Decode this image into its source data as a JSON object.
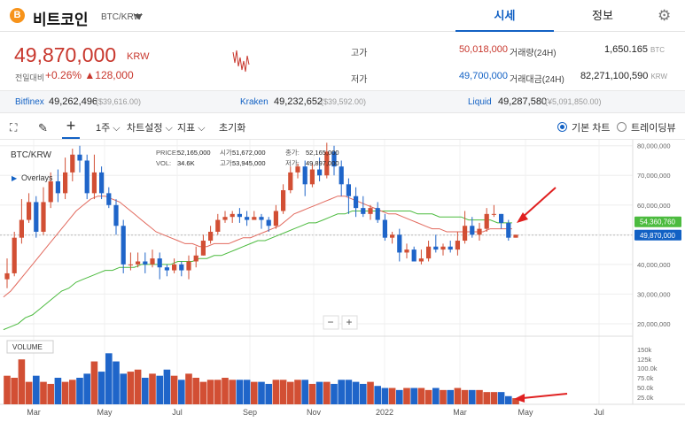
{
  "header": {
    "coin_icon": "bitcoin-icon",
    "coin_glyph": "B",
    "name": "비트코인",
    "pair": "BTC/KRW",
    "tabs": [
      "시세",
      "정보"
    ],
    "active_tab": "시세"
  },
  "price": {
    "value": "49,870,000",
    "unit": "KRW",
    "label": "전일대비",
    "change_pct": "+0.26%",
    "change_abs": "▲128,000"
  },
  "stats": {
    "high_label": "고가",
    "high": "50,018,000",
    "low_label": "저가",
    "low": "49,700,000",
    "vol_label": "거래량(24H)",
    "vol": "1,650.165",
    "vol_unit": "BTC",
    "amt_label": "거래대금(24H)",
    "amt": "82,271,100,590",
    "amt_unit": "KRW"
  },
  "exchanges": [
    {
      "name": "Bitfinex",
      "price": "49,262,496",
      "usd": "($39,616.00)"
    },
    {
      "name": "Kraken",
      "price": "49,232,652",
      "usd": "($39,592.00)"
    },
    {
      "name": "Liquid",
      "price": "49,287,580",
      "usd": "(¥5,091,850.00)"
    }
  ],
  "toolbar": {
    "period": "1주",
    "settings": "차트설정",
    "indicator": "지표",
    "reset": "초기화",
    "basic": "기본 차트",
    "tradingview": "트레이딩뷰"
  },
  "chart_data": {
    "type": "candlestick",
    "symbol": "BTC/KRW",
    "overlay_label": "Overlays",
    "info": {
      "price_label": "PRICE:",
      "price": "52,165,000",
      "vol_label": "VOL:",
      "vol": "34.6K",
      "open_label": "시가:",
      "open": "51,672,000",
      "high_label": "고가:",
      "high": "53,945,000",
      "close_label": "종가:",
      "close": "52,165,000",
      "low_label": "저가:",
      "low": "49,897,000"
    },
    "ylim": [
      17000000,
      82000000
    ],
    "y_ticks": [
      80000000,
      70000000,
      60000000,
      50000000,
      40000000,
      30000000,
      20000000
    ],
    "y_tick_labels": [
      "80,000,000",
      "70,000,000",
      "60,000,000",
      "50,000,000",
      "40,000,000",
      "30,000,000",
      "20,000,000"
    ],
    "x_labels": [
      "Mar",
      "May",
      "Jul",
      "Sep",
      "Nov",
      "2022",
      "Mar",
      "May",
      "Jul"
    ],
    "ma_long_label": "54,360,760",
    "last_price_label": "49,870,000",
    "candles": [
      [
        35,
        37,
        42,
        32
      ],
      [
        37,
        49,
        51,
        36
      ],
      [
        49,
        55,
        62,
        47
      ],
      [
        55,
        61,
        64,
        54
      ],
      [
        61,
        51,
        63,
        49
      ],
      [
        51,
        61,
        66,
        50
      ],
      [
        61,
        68,
        71,
        59
      ],
      [
        68,
        64,
        72,
        61
      ],
      [
        64,
        71,
        76,
        62
      ],
      [
        71,
        77,
        79,
        68
      ],
      [
        77,
        75,
        80,
        71
      ],
      [
        75,
        64,
        77,
        62
      ],
      [
        64,
        71,
        77,
        62
      ],
      [
        71,
        64,
        73,
        62
      ],
      [
        64,
        60,
        66,
        59
      ],
      [
        60,
        53,
        62,
        50
      ],
      [
        53,
        40,
        55,
        37
      ],
      [
        40,
        40,
        44,
        38
      ],
      [
        40,
        41,
        44,
        39
      ],
      [
        41,
        40,
        44,
        37
      ],
      [
        40,
        42,
        45,
        39
      ],
      [
        42,
        39,
        44,
        35
      ],
      [
        39,
        38,
        40,
        36
      ],
      [
        38,
        40,
        42,
        37
      ],
      [
        40,
        38,
        41,
        36
      ],
      [
        38,
        41,
        43,
        35
      ],
      [
        41,
        43,
        46,
        39
      ],
      [
        43,
        48,
        50,
        43
      ],
      [
        48,
        51,
        53,
        47
      ],
      [
        51,
        55,
        57,
        50
      ],
      [
        55,
        56,
        58,
        54
      ],
      [
        56,
        57,
        58,
        54
      ],
      [
        57,
        56,
        59,
        54
      ],
      [
        56,
        55,
        58,
        53
      ],
      [
        55,
        56,
        58,
        55
      ],
      [
        56,
        55,
        57,
        52
      ],
      [
        55,
        53,
        56,
        51
      ],
      [
        53,
        58,
        60,
        52
      ],
      [
        58,
        65,
        67,
        57
      ],
      [
        65,
        71,
        73,
        64
      ],
      [
        71,
        73,
        74,
        69
      ],
      [
        73,
        67,
        75,
        63
      ],
      [
        67,
        72,
        74,
        66
      ],
      [
        72,
        70,
        76,
        68
      ],
      [
        70,
        78,
        81,
        69
      ],
      [
        78,
        73,
        80,
        70
      ],
      [
        73,
        67,
        75,
        63
      ],
      [
        67,
        63,
        69,
        57
      ],
      [
        63,
        59,
        66,
        56
      ],
      [
        59,
        57,
        63,
        56
      ],
      [
        57,
        59,
        60,
        55
      ],
      [
        59,
        55,
        61,
        54
      ],
      [
        55,
        49,
        57,
        48
      ],
      [
        49,
        50,
        51,
        47
      ],
      [
        50,
        44,
        52,
        41
      ],
      [
        44,
        45,
        47,
        42
      ],
      [
        45,
        41,
        46,
        41
      ],
      [
        41,
        42,
        45,
        40
      ],
      [
        42,
        46,
        48,
        41
      ],
      [
        46,
        45,
        50,
        44
      ],
      [
        45,
        46,
        47,
        43
      ],
      [
        46,
        45,
        48,
        44
      ],
      [
        45,
        48,
        51,
        43
      ],
      [
        48,
        53,
        58,
        47
      ],
      [
        53,
        50,
        56,
        49
      ],
      [
        50,
        52,
        54,
        48
      ],
      [
        52,
        57,
        59,
        51
      ],
      [
        57,
        57,
        60,
        56
      ],
      [
        57,
        54,
        57,
        52
      ],
      [
        54,
        49,
        55,
        48
      ],
      [
        49,
        50,
        50,
        49
      ]
    ],
    "ma20": [
      29,
      31,
      34,
      37,
      40,
      43,
      46,
      49,
      52,
      55,
      58,
      60,
      62,
      63,
      63,
      62,
      61,
      59,
      57,
      55,
      53,
      51,
      50,
      49,
      48,
      47,
      47,
      46,
      46,
      47,
      47,
      47,
      48,
      49,
      49,
      50,
      51,
      52,
      53,
      55,
      57,
      58,
      59,
      60,
      61,
      62,
      63,
      63,
      62,
      61,
      60,
      59,
      58,
      57,
      57,
      56,
      55,
      54,
      53,
      52,
      52,
      51,
      51,
      51,
      51,
      51,
      51,
      52,
      52,
      52,
      52
    ],
    "ma50": [
      18,
      19,
      20,
      22,
      23,
      25,
      27,
      29,
      31,
      32,
      34,
      35,
      36,
      37,
      38,
      38,
      39,
      39,
      39,
      40,
      40,
      40,
      40,
      40,
      41,
      41,
      41,
      42,
      42,
      43,
      43,
      44,
      45,
      46,
      47,
      48,
      48,
      49,
      50,
      51,
      52,
      53,
      54,
      54,
      55,
      56,
      57,
      57,
      58,
      58,
      58,
      58,
      58,
      58,
      58,
      58,
      58,
      57,
      57,
      57,
      56,
      56,
      56,
      56,
      55,
      55,
      55,
      55,
      54,
      54,
      54
    ],
    "volume_label": "VOLUME",
    "vol_ticks": [
      "150k",
      "125k",
      "100.0k",
      "75.0k",
      "50.0k",
      "25.0k"
    ],
    "volumes": [
      70,
      65,
      110,
      55,
      70,
      55,
      50,
      65,
      55,
      60,
      65,
      75,
      105,
      80,
      125,
      105,
      75,
      80,
      85,
      65,
      75,
      70,
      85,
      70,
      60,
      75,
      65,
      55,
      60,
      60,
      65,
      60,
      60,
      60,
      55,
      55,
      50,
      60,
      60,
      55,
      60,
      60,
      50,
      55,
      55,
      50,
      60,
      60,
      55,
      50,
      55,
      45,
      40,
      40,
      35,
      40,
      40,
      40,
      35,
      40,
      35,
      35,
      40,
      35,
      35,
      35,
      30,
      30,
      30,
      20,
      15
    ]
  }
}
